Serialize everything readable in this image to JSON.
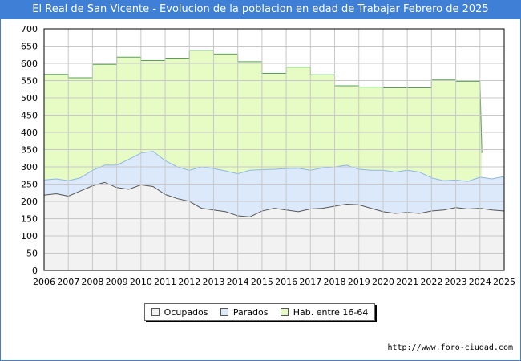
{
  "chart_data": {
    "type": "area",
    "title": "El Real de San Vicente - Evolucion de la poblacion en edad de Trabajar Febrero de 2025",
    "xlabel": "",
    "ylabel": "",
    "ylim": [
      0,
      700
    ],
    "xlim": [
      2006,
      2025
    ],
    "y_ticks": [
      "0",
      "50",
      "100",
      "150",
      "200",
      "250",
      "300",
      "350",
      "400",
      "450",
      "500",
      "550",
      "600",
      "650",
      "700"
    ],
    "x_ticks": [
      "2006",
      "2007",
      "2008",
      "2009",
      "2010",
      "2011",
      "2012",
      "2013",
      "2014",
      "2015",
      "2016",
      "2017",
      "2018",
      "2019",
      "2020",
      "2021",
      "2022",
      "2023",
      "2024",
      "2025"
    ],
    "grid": true,
    "legend_position": "bottom",
    "colors": {
      "ocupados": "#f2f2f2",
      "parados": "#dce9fa",
      "hab": "#e6fcc4",
      "hab_line": "#5aa05a",
      "parados_line": "#8eb6e6",
      "ocupados_line": "#555555",
      "title_bg": "#3f7fd6"
    },
    "series": [
      {
        "name": "Hab. entre 16-64",
        "x": [
          2006,
          2007,
          2007,
          2008,
          2008,
          2009,
          2009,
          2010,
          2010,
          2011,
          2011,
          2012,
          2012,
          2013,
          2013,
          2014,
          2014,
          2015,
          2015,
          2016,
          2016,
          2017,
          2017,
          2018,
          2018,
          2019,
          2019,
          2020,
          2020,
          2021,
          2021,
          2022,
          2022,
          2023,
          2023,
          2024,
          2024.08
        ],
        "values": [
          568,
          568,
          558,
          558,
          597,
          597,
          618,
          618,
          608,
          608,
          615,
          615,
          637,
          637,
          627,
          627,
          605,
          605,
          571,
          571,
          589,
          589,
          567,
          567,
          535,
          535,
          531,
          531,
          529,
          529,
          529,
          529,
          553,
          553,
          548,
          548,
          340
        ]
      },
      {
        "name": "Parados",
        "x": [
          2006,
          2006.5,
          2007,
          2007.5,
          2008,
          2008.5,
          2009,
          2009.5,
          2010,
          2010.5,
          2011,
          2011.5,
          2012,
          2012.5,
          2013,
          2013.5,
          2014,
          2014.5,
          2015,
          2015.5,
          2016,
          2016.5,
          2017,
          2017.5,
          2018,
          2018.5,
          2019,
          2019.5,
          2020,
          2020.5,
          2021,
          2021.5,
          2022,
          2022.5,
          2023,
          2023.5,
          2024,
          2024.5,
          2025
        ],
        "values": [
          262,
          265,
          260,
          268,
          290,
          305,
          305,
          322,
          340,
          345,
          318,
          300,
          290,
          300,
          295,
          288,
          280,
          290,
          292,
          293,
          295,
          296,
          290,
          297,
          300,
          305,
          293,
          290,
          290,
          285,
          290,
          285,
          268,
          260,
          262,
          258,
          270,
          265,
          272
        ]
      },
      {
        "name": "Ocupados",
        "x": [
          2006,
          2006.5,
          2007,
          2007.5,
          2008,
          2008.5,
          2009,
          2009.5,
          2010,
          2010.5,
          2011,
          2011.5,
          2012,
          2012.5,
          2013,
          2013.5,
          2014,
          2014.5,
          2015,
          2015.5,
          2016,
          2016.5,
          2017,
          2017.5,
          2018,
          2018.5,
          2019,
          2019.5,
          2020,
          2020.5,
          2021,
          2021.5,
          2022,
          2022.5,
          2023,
          2023.5,
          2024,
          2024.5,
          2025
        ],
        "values": [
          218,
          222,
          215,
          230,
          245,
          255,
          240,
          235,
          248,
          243,
          220,
          208,
          200,
          180,
          175,
          170,
          158,
          155,
          172,
          180,
          175,
          170,
          178,
          180,
          186,
          192,
          190,
          180,
          170,
          165,
          168,
          165,
          172,
          175,
          182,
          178,
          180,
          175,
          172
        ]
      }
    ],
    "legend": [
      "Ocupados",
      "Parados",
      "Hab. entre 16-64"
    ],
    "source": "http://www.foro-ciudad.com"
  }
}
